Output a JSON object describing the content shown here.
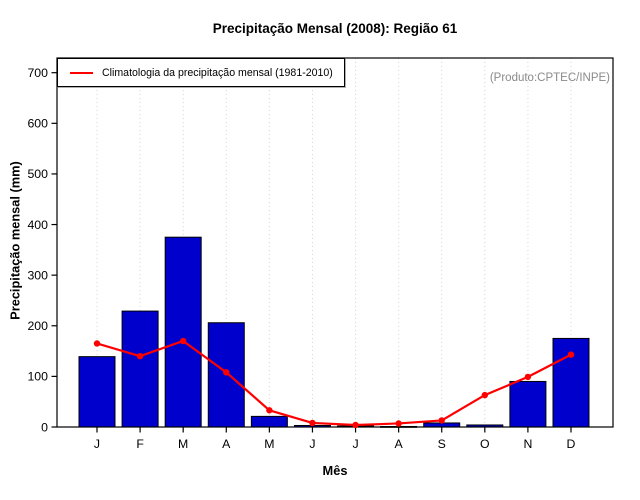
{
  "figure": {
    "title": "Precipitação Mensal (2008): Região 61",
    "producer_note": "(Produto:CPTEC/INPE)",
    "legend_label": "Climatologia da precipitação mensal (1981-2010)"
  },
  "chart_data": {
    "type": "bar",
    "subtype": "bar-with-line-overlay",
    "title": "Precipitação Mensal (2008): Região 61",
    "xlabel": "Mês",
    "ylabel": "Precipitação mensal (mm)",
    "categories": [
      "J",
      "F",
      "M",
      "A",
      "M",
      "J",
      "J",
      "A",
      "S",
      "O",
      "N",
      "D"
    ],
    "series": [
      {
        "name": "Precipitação Mensal (2008)",
        "type": "bar",
        "color": "#0000CD",
        "values": [
          139,
          229,
          375,
          206,
          21,
          3,
          2,
          1,
          8,
          4,
          90,
          175
        ]
      },
      {
        "name": "Climatologia da precipitação mensal (1981-2010)",
        "type": "line",
        "color": "#FF0000",
        "marker": "filled-circle",
        "values": [
          165,
          140,
          170,
          108,
          33,
          8,
          4,
          7,
          13,
          63,
          99,
          143
        ]
      }
    ],
    "ylim": [
      0,
      700
    ],
    "yticks": [
      0,
      100,
      200,
      300,
      400,
      500,
      600,
      700
    ],
    "grid": "vertical-dotted",
    "legend_position": "top-left-inside",
    "annotation": "(Produto:CPTEC/INPE)",
    "colors": {
      "bar_fill": "#0000CD",
      "bar_border": "#000000",
      "line": "#FF0000",
      "grid": "#d4d4d4",
      "axis": "#000000",
      "annotation_text": "#8a8a8a"
    }
  }
}
